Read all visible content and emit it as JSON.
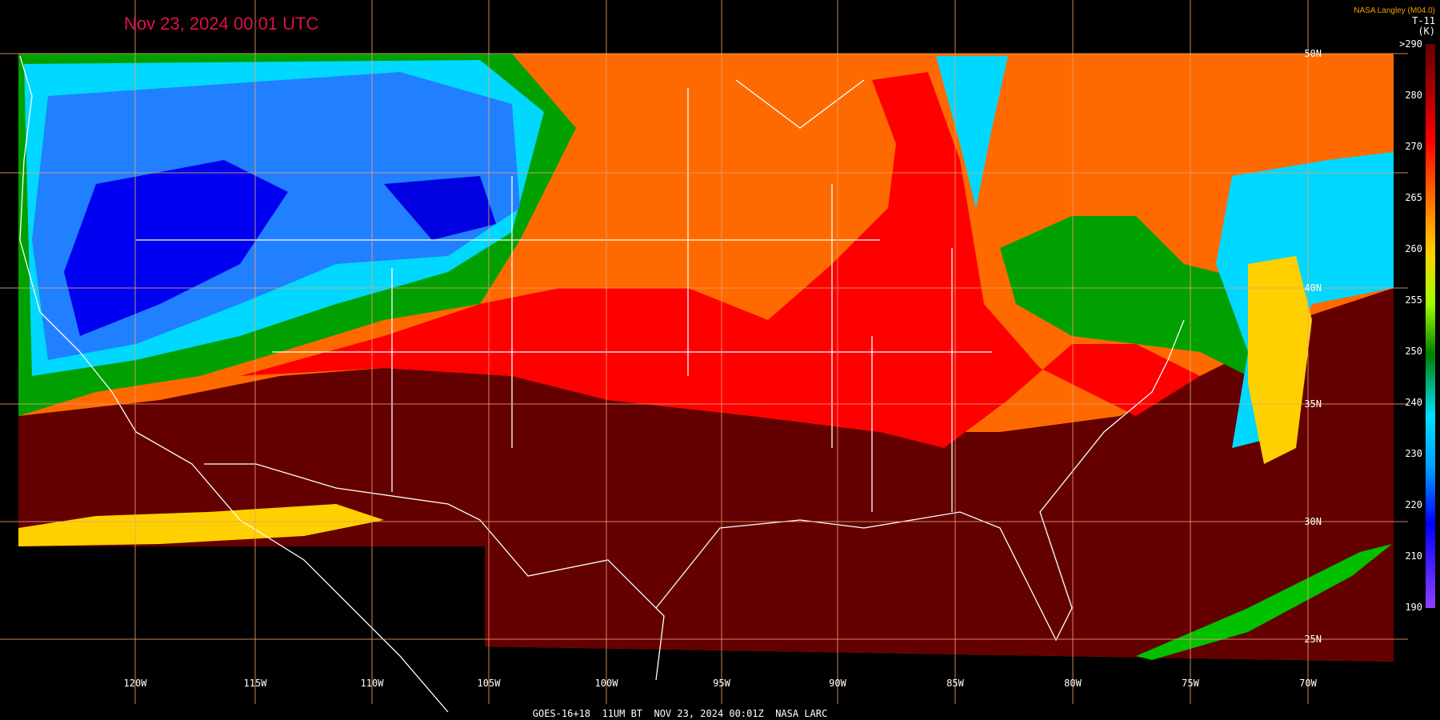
{
  "header": {
    "title": "Nov 23, 2024 00:01 UTC",
    "credit": "NASA Langley (M04.0)"
  },
  "colorbar": {
    "channel": "T-11",
    "unit": "(K)",
    "labels": [
      ">290",
      "280",
      "270",
      "265",
      "260",
      "255",
      "250",
      "240",
      "230",
      "220",
      "210",
      "190"
    ]
  },
  "latitude_labels": [
    "50N",
    "40N",
    "35N",
    "30N",
    "25N"
  ],
  "longitude_labels": [
    "120W",
    "115W",
    "110W",
    "105W",
    "100W",
    "95W",
    "90W",
    "85W",
    "80W",
    "75W",
    "70W"
  ],
  "footer": "GOES-16+18  11UM BT  NOV 23, 2024 00:01Z  NASA LARC"
}
